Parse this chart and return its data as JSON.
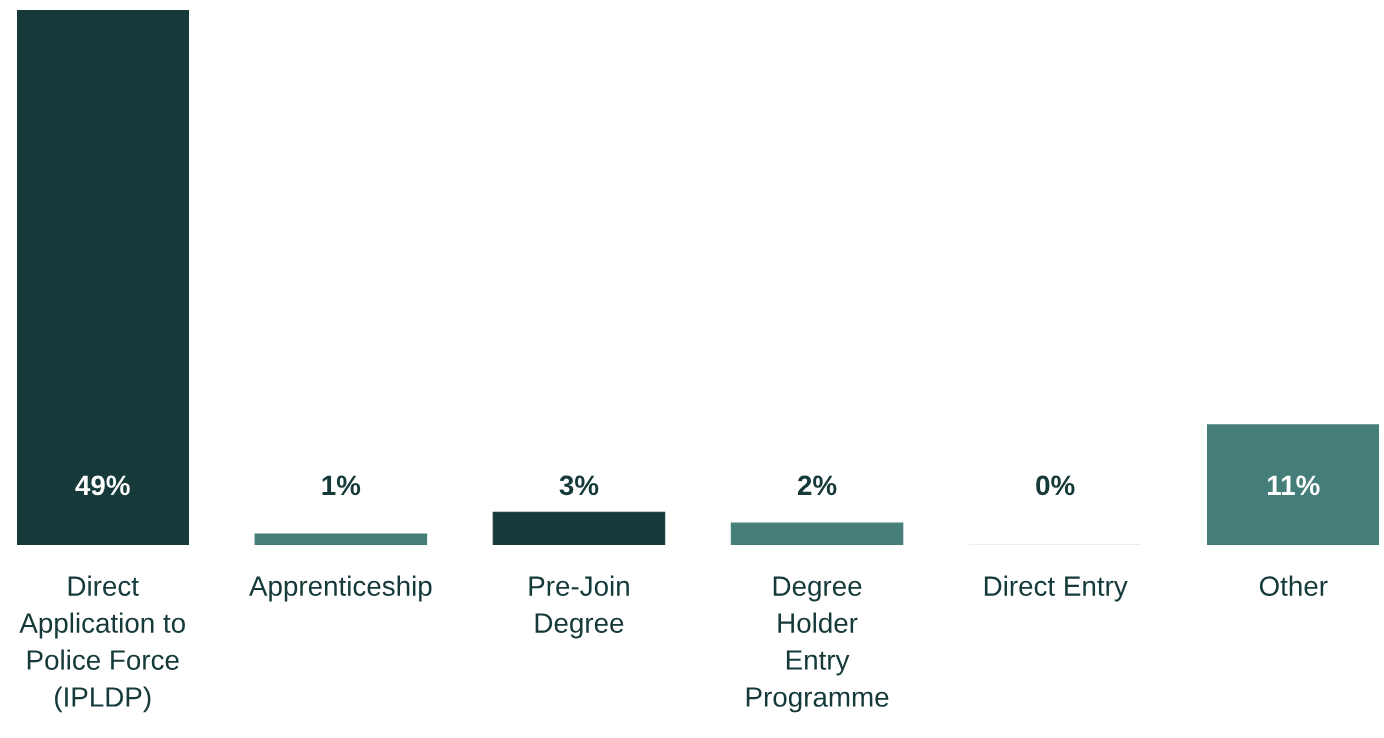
{
  "chart_data": {
    "type": "bar",
    "categories": [
      "Direct\nApplication to\nPolice Force\n(IPLDP)",
      "Apprenticeship",
      "Pre-Join\nDegree",
      "Degree\nHolder\nEntry\nProgramme",
      "Direct Entry",
      "Other"
    ],
    "values": [
      49,
      1,
      3,
      2,
      0,
      11
    ],
    "colors": [
      "#163a3a",
      "#457d79",
      "#163a3a",
      "#457d79",
      "#d3dcda",
      "#457d79"
    ],
    "value_labels": [
      "49%",
      "1%",
      "3%",
      "2%",
      "0%",
      "11%"
    ],
    "grid": false,
    "legend": false,
    "tick_labels": "x"
  }
}
